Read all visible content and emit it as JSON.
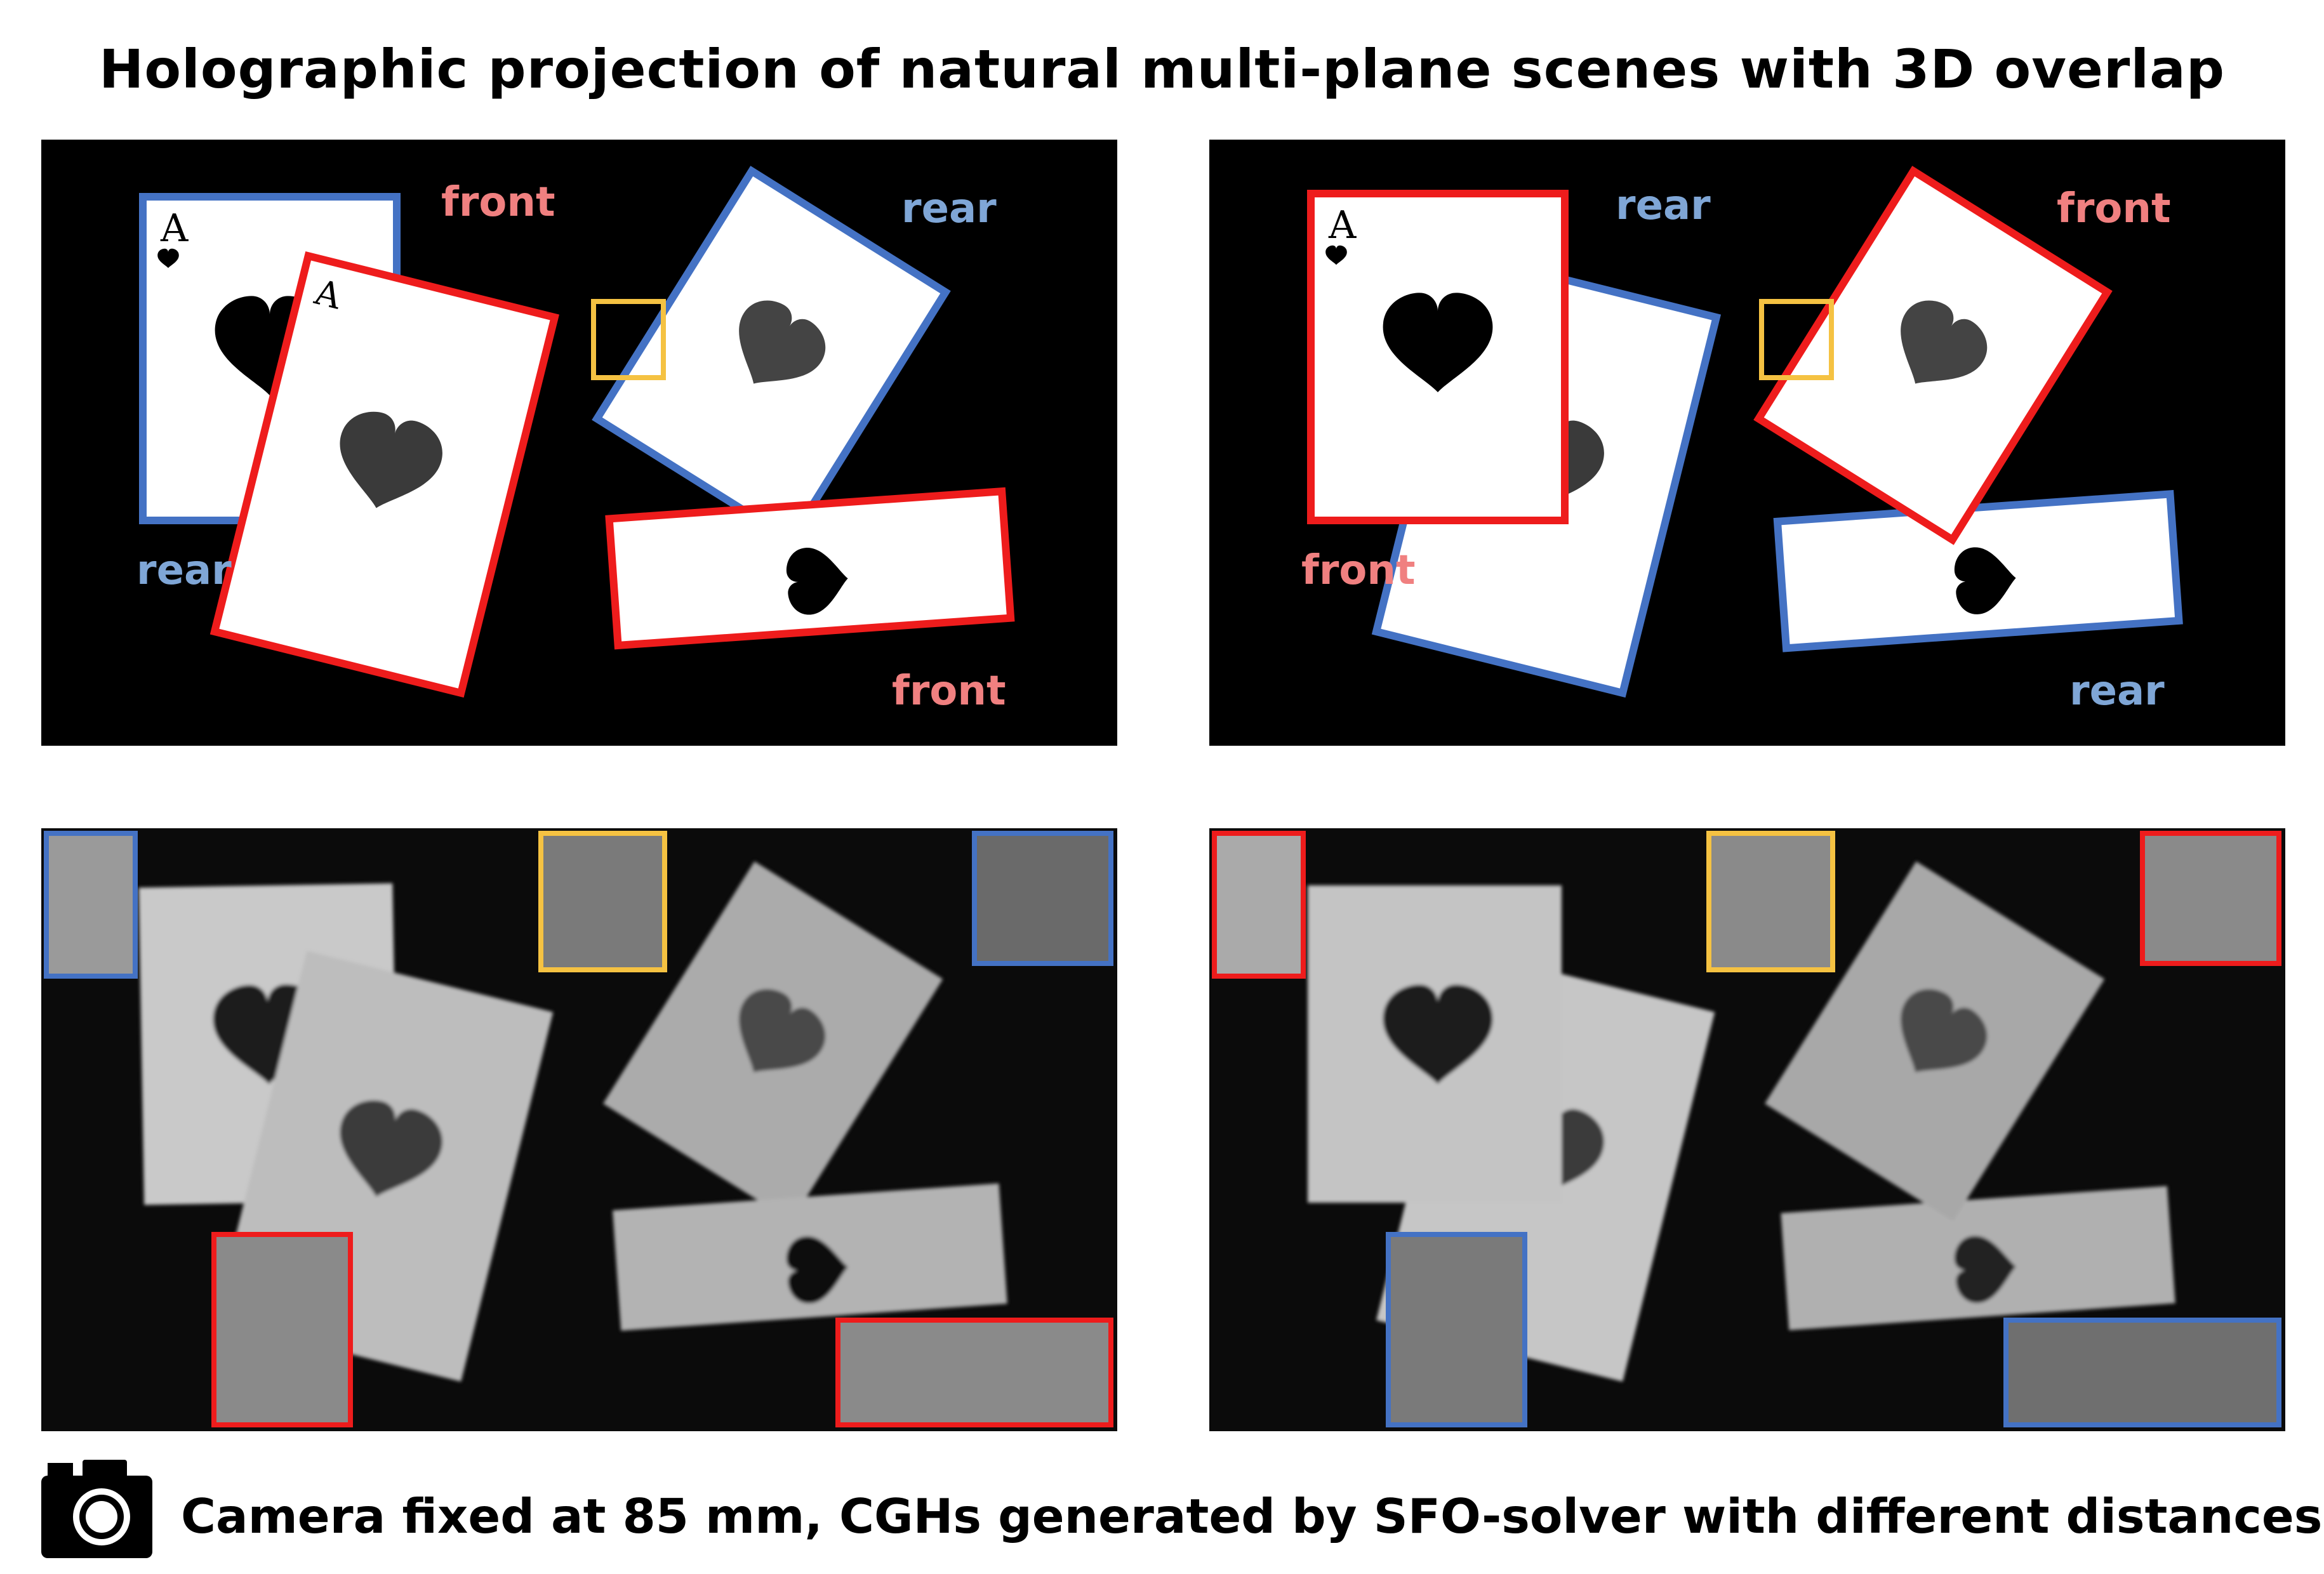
{
  "title": "Holographic projection of natural multi-plane scenes with 3D overlap",
  "caption": "Camera fixed at 85 mm, CGHs generated by SFO-solver with different distances",
  "colors": {
    "front": "#ee1c1c",
    "rear": "#4472c4",
    "highlight": "#f5c242",
    "front_label": "#f08080",
    "rear_label": "#7fa6d6"
  },
  "icons": {
    "camera": "camera-icon",
    "suit": "heart-suit-icon"
  },
  "card_index": "A",
  "panels": {
    "top_left": {
      "labels": {
        "card1": "rear",
        "card2": "front",
        "card3": "rear",
        "card4": "front"
      }
    },
    "top_right": {
      "labels": {
        "card1": "front",
        "card2": "rear",
        "card3": "front",
        "card4": "rear"
      }
    },
    "bottom_left": {
      "type": "camera-capture"
    },
    "bottom_right": {
      "type": "camera-capture"
    }
  }
}
